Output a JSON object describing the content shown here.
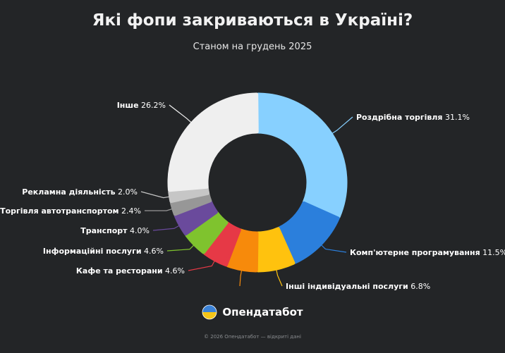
{
  "header": {
    "title": "Які фопи закриваються в Україні?",
    "subtitle": "Станом на грудень 2025"
  },
  "chart_data": {
    "type": "pie",
    "variant": "donut",
    "title": "Які фопи закриваються в Україні?",
    "subtitle": "Станом на грудень 2025",
    "unit": "%",
    "slices": [
      {
        "label": "Роздрібна торгівля",
        "value": 31.1,
        "display": "31.1%",
        "color": "#87d0ff"
      },
      {
        "label": "Комп'ютерне програмування",
        "value": 11.5,
        "display": "11.5%",
        "color": "#2b7fdc"
      },
      {
        "label": "Інші індивідуальні послуги",
        "value": 6.8,
        "display": "6.8%",
        "color": "#ffc20e"
      },
      {
        "label": "",
        "value": 5.5,
        "display": "",
        "color": "#f78a0b"
      },
      {
        "label": "Кафе та ресторани",
        "value": 4.6,
        "display": "4.6%",
        "color": "#e63946"
      },
      {
        "label": "Інформаційні послуги",
        "value": 4.6,
        "display": "4.6%",
        "color": "#7fc32e"
      },
      {
        "label": "Транспорт",
        "value": 4.0,
        "display": "4.0%",
        "color": "#6a4a9c"
      },
      {
        "label": "Торгівля автотранспортом",
        "value": 2.4,
        "display": "2.4%",
        "color": "#979797"
      },
      {
        "label": "Рекламна діяльність",
        "value": 2.0,
        "display": "2.0%",
        "color": "#c6c6c6"
      },
      {
        "label": "Інше",
        "value": 26.2,
        "display": "26.2%",
        "color": "#efefef"
      }
    ],
    "legend": "none (labels beside slices)"
  },
  "brand": {
    "name": "Опендатабот",
    "icon": "opendatabot-logo-icon"
  },
  "footer": {
    "text": "© 2026 Опендатабот — відкриті дані"
  },
  "colors": {
    "background": "#232527",
    "leader_line": "#ffffff"
  }
}
